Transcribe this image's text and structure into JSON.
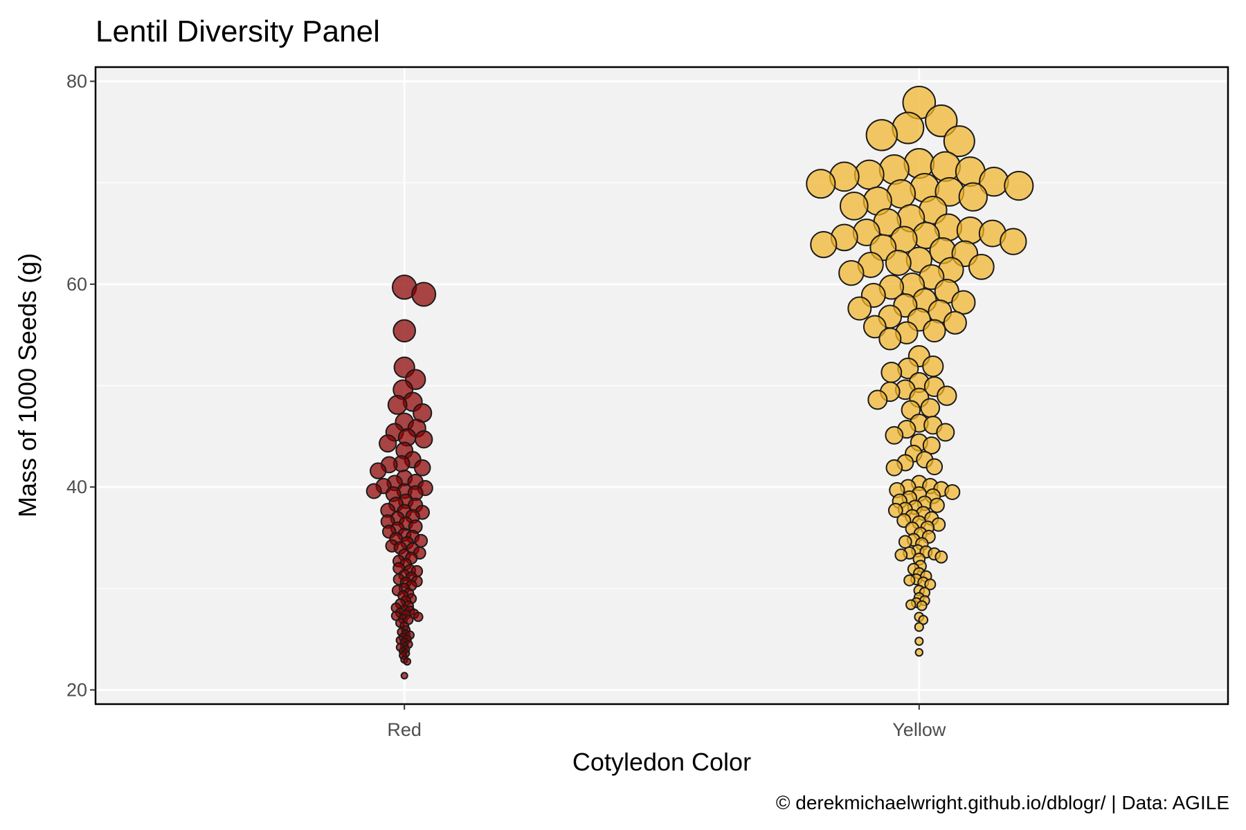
{
  "chart_data": {
    "type": "scatter",
    "subtype": "beeswarm",
    "title": "Lentil Diversity Panel",
    "xlabel": "Cotyledon Color",
    "ylabel": "Mass of 1000 Seeds (g)",
    "caption": "© derekmichaelwright.github.io/dblogr/ | Data: AGILE",
    "categories": [
      "Red",
      "Yellow"
    ],
    "ylim": [
      18.6,
      81.4
    ],
    "yticks": [
      20,
      40,
      60,
      80
    ],
    "grid": true,
    "legend": "none",
    "point_size_encodes": "Mass of 1000 Seeds (g)",
    "series": [
      {
        "category": "Red",
        "color": "#8b0000",
        "values": [
          59.7,
          59.0,
          55.4,
          51.8,
          50.6,
          49.6,
          48.4,
          48.1,
          47.3,
          45.8,
          46.4,
          45.4,
          44.9,
          44.7,
          44.3,
          43.6,
          42.7,
          42.3,
          42.2,
          41.9,
          41.6,
          40.9,
          40.5,
          40.4,
          40.1,
          39.9,
          39.6,
          39.6,
          39.4,
          39.3,
          38.6,
          38.3,
          38.2,
          37.7,
          37.6,
          37.5,
          37.1,
          36.9,
          36.6,
          36.4,
          36.1,
          35.9,
          35.6,
          35.3,
          35.1,
          34.9,
          34.7,
          34.5,
          34.2,
          34.0,
          33.9,
          33.5,
          33.3,
          33.0,
          32.7,
          32.4,
          32.0,
          31.8,
          31.7,
          31.3,
          31.1,
          30.9,
          30.7,
          30.6,
          30.3,
          30.0,
          29.8,
          29.5,
          29.3,
          29.0,
          28.8,
          28.5,
          28.3,
          28.1,
          27.9,
          27.8,
          27.6,
          27.5,
          27.4,
          27.3,
          27.2,
          27.0,
          26.9,
          26.6,
          26.3,
          25.9,
          25.7,
          25.5,
          25.4,
          25.2,
          25.0,
          24.9,
          24.7,
          24.5,
          24.3,
          24.2,
          24.0,
          23.8,
          23.6,
          23.4,
          23.0,
          22.8,
          21.4
        ]
      },
      {
        "category": "Yellow",
        "color": "#f0b429",
        "values": [
          77.9,
          76.1,
          75.4,
          74.7,
          74.1,
          71.9,
          71.6,
          71.3,
          71.1,
          70.8,
          70.6,
          70.1,
          69.9,
          69.7,
          69.5,
          69.1,
          68.9,
          68.6,
          68.2,
          67.7,
          67.3,
          66.5,
          66.1,
          65.6,
          65.3,
          65.1,
          65.0,
          64.8,
          64.6,
          64.4,
          64.2,
          63.9,
          63.6,
          63.3,
          63.0,
          62.4,
          62.1,
          61.9,
          61.7,
          61.4,
          61.1,
          60.7,
          59.9,
          59.7,
          59.3,
          58.9,
          58.4,
          58.2,
          57.9,
          57.6,
          57.3,
          56.8,
          56.5,
          56.2,
          55.8,
          55.4,
          55.2,
          54.6,
          52.9,
          51.9,
          51.7,
          51.3,
          50.3,
          49.9,
          49.6,
          49.4,
          49.0,
          48.8,
          48.6,
          47.8,
          47.6,
          46.3,
          46.1,
          45.7,
          45.4,
          45.1,
          44.4,
          44.1,
          43.3,
          42.7,
          42.4,
          42.0,
          41.9,
          40.4,
          40.1,
          40.0,
          39.8,
          39.7,
          39.5,
          39.3,
          39.1,
          38.9,
          38.6,
          38.4,
          38.2,
          38.0,
          37.8,
          37.7,
          37.4,
          37.1,
          36.9,
          36.7,
          36.5,
          36.3,
          36.0,
          35.9,
          35.4,
          35.1,
          34.8,
          34.6,
          34.4,
          33.7,
          33.6,
          33.5,
          33.4,
          33.3,
          33.1,
          32.9,
          32.2,
          31.9,
          31.5,
          31.2,
          30.9,
          30.8,
          30.6,
          30.4,
          29.8,
          29.6,
          29.1,
          28.8,
          28.6,
          28.4,
          28.3,
          27.2,
          26.9,
          26.2,
          24.8,
          23.7
        ]
      }
    ]
  }
}
